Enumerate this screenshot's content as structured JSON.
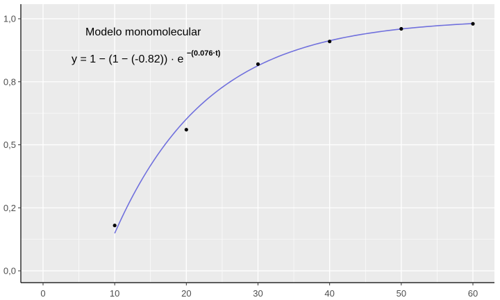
{
  "chart_data": {
    "type": "scatter",
    "title": "",
    "xlabel": "",
    "ylabel": "",
    "xlim": [
      -3,
      62
    ],
    "ylim": [
      -0.05,
      1.05
    ],
    "x_ticks": [
      0,
      10,
      20,
      30,
      40,
      50,
      60
    ],
    "x_tick_labels": [
      "0",
      "10",
      "20",
      "30",
      "40",
      "50",
      "60"
    ],
    "y_ticks": [
      0.0,
      0.25,
      0.5,
      0.75,
      1.0
    ],
    "y_tick_labels": [
      "0,0",
      "0,2",
      "0,5",
      "0,8",
      "1,0"
    ],
    "grid": true,
    "points": {
      "x": [
        10,
        20,
        30,
        40,
        50,
        60
      ],
      "y": [
        0.18,
        0.56,
        0.82,
        0.91,
        0.96,
        0.98
      ]
    },
    "fit": {
      "model": "monomolecular",
      "y0": -0.82,
      "r": 0.076,
      "x_from": 10,
      "x_to": 60,
      "color": "#7070dd"
    },
    "annotation": {
      "title": "Modelo monomolecular",
      "eq_main": "y = 1 − (1 − (-0.82)) · e",
      "eq_sup": "−(0.076·t)"
    },
    "colors": {
      "panel": "#ebebeb",
      "grid": "#ffffff",
      "point": "#000000"
    }
  }
}
